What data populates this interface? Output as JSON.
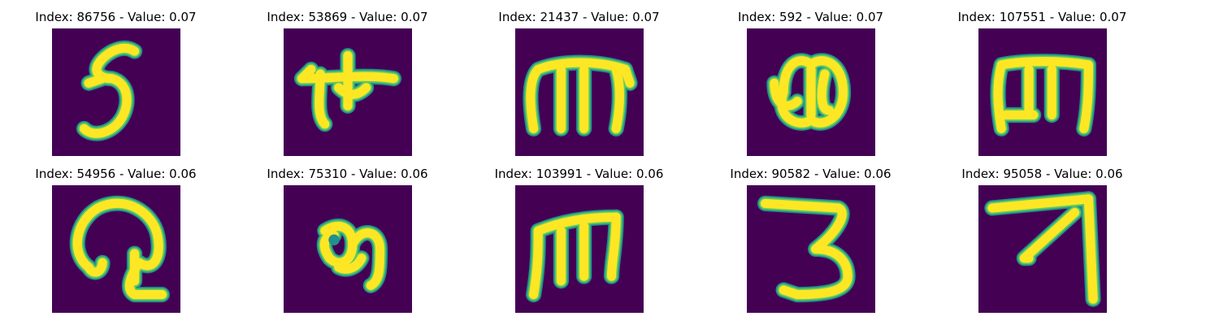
{
  "colors": {
    "background": "#440154",
    "stroke_core": "#fde725",
    "stroke_edge": "#21918c",
    "stroke_mid": "#5ec962"
  },
  "panels": [
    {
      "title": "Index: 86756 - Value: 0.07",
      "glyph": "digit-5-glyph"
    },
    {
      "title": "Index: 53869 - Value: 0.07",
      "glyph": "cross-shaped-glyph"
    },
    {
      "title": "Index: 21437 - Value: 0.07",
      "glyph": "m-shaped-glyph"
    },
    {
      "title": "Index: 592 - Value: 0.07",
      "glyph": "double-loop-glyph"
    },
    {
      "title": "Index: 107551 - Value: 0.07",
      "glyph": "m-shaped-glyph"
    },
    {
      "title": "Index: 54956 - Value: 0.06",
      "glyph": "hook-loop-glyph"
    },
    {
      "title": "Index: 75310 - Value: 0.06",
      "glyph": "round-hook-glyph"
    },
    {
      "title": "Index: 103991 - Value: 0.06",
      "glyph": "m-shaped-glyph"
    },
    {
      "title": "Index: 90582 - Value: 0.06",
      "glyph": "digit-3-glyph"
    },
    {
      "title": "Index: 95058 - Value: 0.06",
      "glyph": "arrow-up-right-glyph"
    }
  ]
}
